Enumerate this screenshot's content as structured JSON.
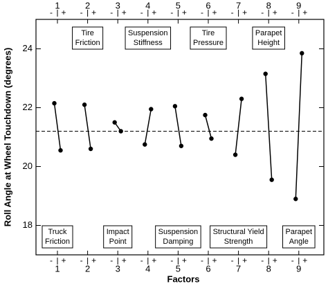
{
  "chart_data": {
    "type": "main_effects",
    "x_label": "Factors",
    "y_label": "Roll Angle at Wheel Touchdown (degrees)",
    "categories": [
      "1",
      "2",
      "3",
      "4",
      "5",
      "6",
      "7",
      "8",
      "9"
    ],
    "factor_labels": [
      [
        "Truck",
        "Friction"
      ],
      [
        "Tire",
        "Friction"
      ],
      [
        "Impact",
        "Point"
      ],
      [
        "Suspension",
        "Stiffness"
      ],
      [
        "Suspension",
        "Damping"
      ],
      [
        "Tire",
        "Pressure"
      ],
      [
        "Structural Yield",
        "Strength"
      ],
      [
        "Parapet",
        "Height"
      ],
      [
        "Parapet",
        "Angle"
      ]
    ],
    "series": [
      {
        "name": "-",
        "color": "#000000",
        "values": [
          22.15,
          22.1,
          21.5,
          20.75,
          22.05,
          21.75,
          20.4,
          23.15,
          18.9
        ]
      },
      {
        "name": "+",
        "color": "#000000",
        "values": [
          20.55,
          20.6,
          21.2,
          21.95,
          20.7,
          20.95,
          22.3,
          19.55,
          23.85
        ]
      }
    ],
    "reference_line": 21.2,
    "ylim": [
      17,
      25
    ],
    "yticks": [
      18,
      20,
      22,
      24
    ]
  }
}
